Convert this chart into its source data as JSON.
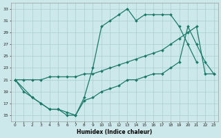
{
  "xlabel": "Humidex (Indice chaleur)",
  "line1_x": [
    0,
    1,
    2,
    3,
    4,
    5,
    6,
    7,
    8,
    9,
    10,
    11,
    12,
    13,
    14,
    15,
    16,
    17,
    18,
    19,
    20,
    21
  ],
  "line1_y": [
    21,
    19,
    18,
    17,
    16,
    16,
    15,
    15,
    18,
    23,
    30,
    31,
    32,
    33,
    31,
    32,
    32,
    32,
    32,
    30,
    27,
    24
  ],
  "line2_x": [
    0,
    2,
    3,
    4,
    5,
    6,
    7,
    8,
    9,
    10,
    11,
    12,
    13,
    14,
    15,
    16,
    17,
    18,
    19,
    20,
    21,
    22,
    23
  ],
  "line2_y": [
    21,
    18,
    17,
    16,
    16,
    15.5,
    15,
    17.5,
    18,
    19,
    19.5,
    20,
    21,
    21,
    21.5,
    22,
    22,
    23,
    24,
    30,
    27,
    24,
    22
  ],
  "line3_x": [
    0,
    1,
    2,
    3,
    4,
    5,
    6,
    7,
    8,
    9,
    10,
    11,
    12,
    13,
    14,
    15,
    16,
    17,
    18,
    19,
    20,
    21,
    22,
    23
  ],
  "line3_y": [
    21,
    21,
    21,
    21,
    21.5,
    21.5,
    21.5,
    21.5,
    22,
    22,
    22.5,
    23,
    23.5,
    24,
    24.5,
    25,
    25.5,
    26,
    27,
    28,
    29,
    30,
    22,
    22
  ],
  "color": "#1a7a6a",
  "bg_color": "#cce8ea",
  "grid_color": "#aacdd0",
  "xlim": [
    -0.5,
    23.5
  ],
  "ylim": [
    14,
    34
  ],
  "yticks": [
    15,
    17,
    19,
    21,
    23,
    25,
    27,
    29,
    31,
    33
  ],
  "xticks": [
    0,
    1,
    2,
    3,
    4,
    5,
    6,
    7,
    8,
    9,
    10,
    11,
    12,
    13,
    14,
    15,
    16,
    17,
    18,
    19,
    20,
    21,
    22,
    23
  ]
}
